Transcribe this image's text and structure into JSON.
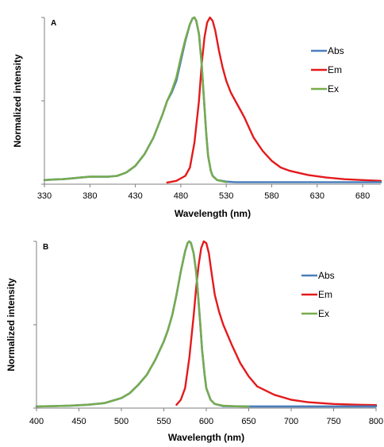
{
  "colors": {
    "Abs": "#4a7ebb",
    "Em": "#e41a1c",
    "Ex": "#77ac4a",
    "axis": "#7f7f7f"
  },
  "chart_data": [
    {
      "type": "line",
      "panel_label": "A",
      "xlabel": "Wavelength (nm)",
      "ylabel": "Normalized intensity",
      "xlim": [
        330,
        700
      ],
      "ylim": [
        0,
        1
      ],
      "x_ticks": [
        330,
        380,
        430,
        480,
        530,
        580,
        630,
        680
      ],
      "grid": false,
      "legend_position": "right",
      "series": [
        {
          "name": "Abs",
          "x": [
            330,
            340,
            350,
            360,
            370,
            380,
            390,
            400,
            410,
            420,
            430,
            440,
            450,
            460,
            465,
            470,
            475,
            480,
            485,
            490,
            493,
            495,
            497,
            500,
            503,
            505,
            508,
            510,
            513,
            515,
            520,
            525,
            530,
            540,
            560,
            600,
            650,
            700
          ],
          "y": [
            0.025,
            0.028,
            0.03,
            0.035,
            0.04,
            0.045,
            0.045,
            0.045,
            0.05,
            0.07,
            0.11,
            0.18,
            0.28,
            0.42,
            0.5,
            0.55,
            0.62,
            0.74,
            0.86,
            0.96,
            0.995,
            1.0,
            0.98,
            0.9,
            0.72,
            0.55,
            0.3,
            0.17,
            0.08,
            0.05,
            0.025,
            0.02,
            0.015,
            0.012,
            0.012,
            0.012,
            0.012,
            0.012
          ]
        },
        {
          "name": "Em",
          "x": [
            465,
            475,
            485,
            490,
            495,
            500,
            503,
            506,
            509,
            512,
            515,
            518,
            522,
            526,
            530,
            535,
            540,
            545,
            550,
            555,
            560,
            570,
            580,
            590,
            600,
            620,
            640,
            660,
            680,
            700
          ],
          "y": [
            0.01,
            0.02,
            0.05,
            0.1,
            0.25,
            0.5,
            0.72,
            0.88,
            0.97,
            1.0,
            0.98,
            0.92,
            0.8,
            0.7,
            0.62,
            0.55,
            0.5,
            0.45,
            0.4,
            0.34,
            0.28,
            0.2,
            0.14,
            0.1,
            0.08,
            0.055,
            0.04,
            0.03,
            0.025,
            0.02
          ]
        },
        {
          "name": "Ex",
          "x": [
            330,
            340,
            350,
            360,
            370,
            380,
            390,
            400,
            410,
            420,
            430,
            440,
            450,
            460,
            465,
            470,
            475,
            480,
            485,
            490,
            493,
            495,
            497,
            500,
            503,
            505,
            508,
            510,
            513,
            515,
            520,
            525,
            530
          ],
          "y": [
            0.025,
            0.028,
            0.03,
            0.035,
            0.04,
            0.045,
            0.045,
            0.045,
            0.05,
            0.07,
            0.11,
            0.18,
            0.28,
            0.42,
            0.5,
            0.56,
            0.64,
            0.76,
            0.87,
            0.96,
            0.995,
            1.0,
            0.98,
            0.9,
            0.72,
            0.55,
            0.3,
            0.17,
            0.08,
            0.05,
            0.025,
            0.018,
            0.012
          ]
        }
      ]
    },
    {
      "type": "line",
      "panel_label": "B",
      "xlabel": "Wavelength (nm)",
      "ylabel": "Normalized intensity",
      "xlim": [
        400,
        800
      ],
      "ylim": [
        0,
        1
      ],
      "x_ticks": [
        400,
        450,
        500,
        550,
        600,
        650,
        700,
        750,
        800
      ],
      "grid": false,
      "legend_position": "right",
      "series": [
        {
          "name": "Abs",
          "x": [
            400,
            420,
            440,
            460,
            480,
            500,
            510,
            520,
            530,
            540,
            550,
            555,
            560,
            565,
            570,
            575,
            578,
            580,
            582,
            585,
            588,
            590,
            593,
            595,
            598,
            600,
            605,
            610,
            620,
            650,
            700,
            750,
            800
          ],
          "y": [
            0.01,
            0.012,
            0.015,
            0.02,
            0.03,
            0.06,
            0.09,
            0.14,
            0.2,
            0.29,
            0.4,
            0.47,
            0.56,
            0.68,
            0.82,
            0.94,
            0.99,
            1.0,
            0.99,
            0.93,
            0.82,
            0.7,
            0.5,
            0.35,
            0.2,
            0.12,
            0.05,
            0.025,
            0.012,
            0.01,
            0.01,
            0.01,
            0.01
          ]
        },
        {
          "name": "Em",
          "x": [
            565,
            570,
            575,
            580,
            585,
            588,
            591,
            594,
            597,
            600,
            603,
            606,
            610,
            615,
            620,
            630,
            640,
            650,
            660,
            680,
            700,
            720,
            750,
            780,
            800
          ],
          "y": [
            0.02,
            0.05,
            0.12,
            0.3,
            0.55,
            0.72,
            0.86,
            0.96,
            1.0,
            0.99,
            0.93,
            0.82,
            0.68,
            0.58,
            0.5,
            0.38,
            0.27,
            0.19,
            0.13,
            0.08,
            0.05,
            0.035,
            0.025,
            0.02,
            0.018
          ]
        },
        {
          "name": "Ex",
          "x": [
            400,
            420,
            440,
            460,
            480,
            500,
            510,
            520,
            530,
            540,
            550,
            555,
            560,
            565,
            570,
            575,
            578,
            580,
            582,
            585,
            588,
            590,
            593,
            595,
            598,
            600,
            605,
            610,
            620,
            640,
            650
          ],
          "y": [
            0.01,
            0.012,
            0.015,
            0.02,
            0.03,
            0.06,
            0.09,
            0.14,
            0.2,
            0.29,
            0.4,
            0.47,
            0.56,
            0.68,
            0.82,
            0.94,
            0.99,
            1.0,
            0.99,
            0.93,
            0.82,
            0.7,
            0.5,
            0.35,
            0.2,
            0.12,
            0.05,
            0.025,
            0.015,
            0.01,
            0.01
          ]
        }
      ]
    }
  ]
}
